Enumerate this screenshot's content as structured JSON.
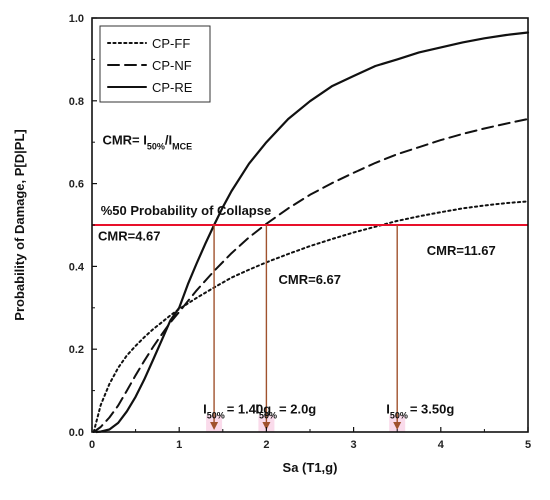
{
  "chart_data": {
    "type": "line",
    "title": "",
    "xlabel": "Sa (T1,g)",
    "ylabel": "Probability of Damage, P[D|PL]",
    "xlim": [
      0,
      5
    ],
    "ylim": [
      0,
      1.0
    ],
    "xticks": [
      "0",
      "1",
      "2",
      "3",
      "4",
      "5"
    ],
    "yticks": [
      "0.0",
      "0.2",
      "0.4",
      "0.6",
      "0.8",
      "1.0"
    ],
    "legend_position": "top-left",
    "series": [
      {
        "name": "CP-FF",
        "style": "dotted",
        "x": [
          0.02,
          0.1,
          0.2,
          0.3,
          0.4,
          0.5,
          0.6,
          0.7,
          0.8,
          0.9,
          1.0,
          1.2,
          1.4,
          1.6,
          1.8,
          2.0,
          2.25,
          2.5,
          2.75,
          3.0,
          3.25,
          3.5,
          3.75,
          4.0,
          4.25,
          4.5,
          4.75,
          5.0
        ],
        "y": [
          0.0,
          0.065,
          0.116,
          0.155,
          0.185,
          0.208,
          0.229,
          0.248,
          0.265,
          0.282,
          0.297,
          0.324,
          0.349,
          0.373,
          0.392,
          0.41,
          0.43,
          0.449,
          0.466,
          0.482,
          0.496,
          0.51,
          0.521,
          0.531,
          0.54,
          0.547,
          0.553,
          0.557
        ]
      },
      {
        "name": "CP-NF",
        "style": "dashed",
        "x": [
          0.02,
          0.1,
          0.2,
          0.3,
          0.4,
          0.5,
          0.6,
          0.7,
          0.8,
          0.9,
          1.0,
          1.2,
          1.4,
          1.6,
          1.8,
          2.0,
          2.25,
          2.5,
          2.75,
          3.0,
          3.25,
          3.5,
          3.75,
          4.0,
          4.25,
          4.5,
          4.75,
          5.0
        ],
        "y": [
          0.0,
          0.012,
          0.035,
          0.064,
          0.1,
          0.137,
          0.172,
          0.205,
          0.236,
          0.265,
          0.29,
          0.342,
          0.389,
          0.432,
          0.47,
          0.503,
          0.54,
          0.573,
          0.601,
          0.626,
          0.65,
          0.671,
          0.688,
          0.705,
          0.72,
          0.733,
          0.745,
          0.756
        ]
      },
      {
        "name": "CP-RE",
        "style": "solid",
        "x": [
          0.05,
          0.1,
          0.2,
          0.3,
          0.4,
          0.5,
          0.6,
          0.7,
          0.8,
          0.9,
          1.0,
          1.1,
          1.2,
          1.3,
          1.4,
          1.5,
          1.6,
          1.8,
          2.0,
          2.25,
          2.5,
          2.75,
          3.0,
          3.25,
          3.5,
          3.75,
          4.0,
          4.25,
          4.5,
          4.75,
          5.0
        ],
        "y": [
          0.0,
          0.001,
          0.006,
          0.022,
          0.05,
          0.085,
          0.127,
          0.174,
          0.222,
          0.27,
          0.3,
          0.357,
          0.407,
          0.455,
          0.5,
          0.543,
          0.582,
          0.648,
          0.7,
          0.756,
          0.799,
          0.835,
          0.86,
          0.884,
          0.9,
          0.917,
          0.929,
          0.941,
          0.951,
          0.959,
          0.965
        ]
      }
    ],
    "threshold": {
      "y": 0.5,
      "x_start": 0.0,
      "x_end": 5.0,
      "color": "#e8102a",
      "label": "%50 Probability of Collapse"
    },
    "marker_color": "#a0522d",
    "highlight_color": "#f9d2e6",
    "drop_lines": [
      {
        "x": 1.4,
        "from_y": 0.5,
        "label_prefix": "I",
        "label_sub": "50%",
        "label_value": "= 1.40g"
      },
      {
        "x": 2.0,
        "from_y": 0.5,
        "label_prefix": "I",
        "label_sub": "50%",
        "label_value": "= 2.0g"
      },
      {
        "x": 3.5,
        "from_y": 0.5,
        "label_prefix": "I",
        "label_sub": "50%",
        "label_value": "= 3.50g"
      }
    ],
    "cmr_formula": {
      "prefix": "CMR= I",
      "sub1": "50%",
      "mid": "/I",
      "sub2": "MCE"
    },
    "annotations": [
      {
        "text": "CMR=4.67",
        "x": 0.0,
        "y": 0.475
      },
      {
        "text": "CMR=6.67",
        "x": 2.07,
        "y": 0.37
      },
      {
        "text": "CMR=11.67",
        "x": 3.77,
        "y": 0.44
      }
    ],
    "legend": [
      {
        "label": "CP-FF",
        "style": "dotted"
      },
      {
        "label": "CP-NF",
        "style": "dashed"
      },
      {
        "label": "CP-RE",
        "style": "solid"
      }
    ]
  }
}
